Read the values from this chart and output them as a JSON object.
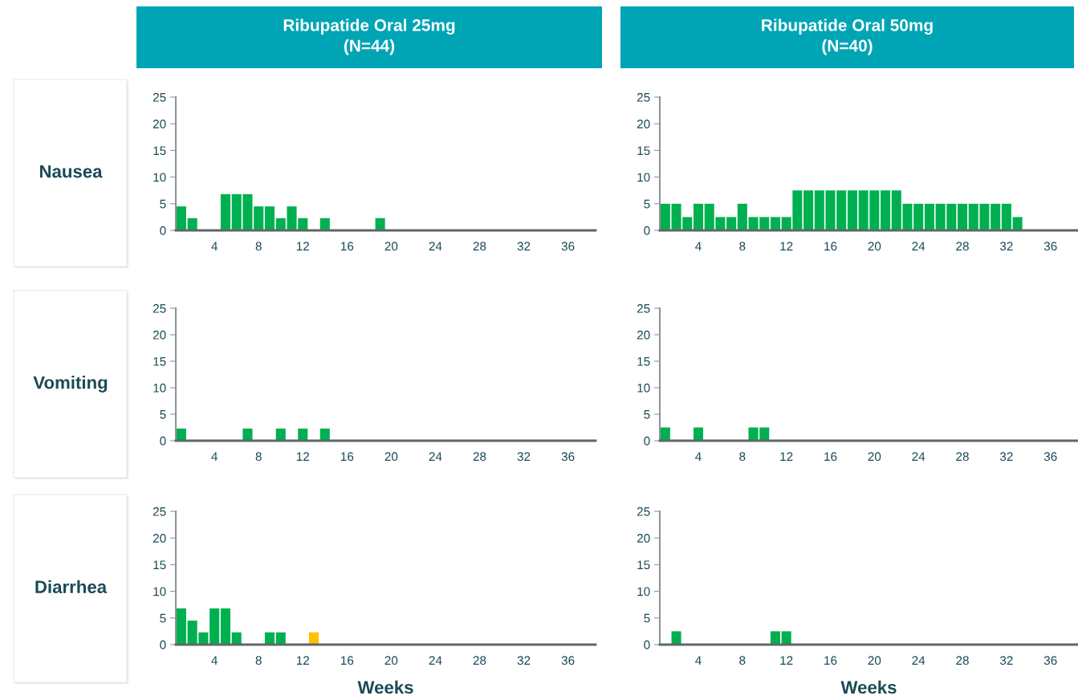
{
  "chart_data": [
    {
      "type": "bar",
      "title": "Ribupatide Oral 25mg\n(N=44)",
      "ylabel": "Nausea",
      "color": "#00b050",
      "x": [
        1,
        2,
        5,
        6,
        7,
        8,
        9,
        10,
        11,
        12,
        14,
        19
      ],
      "values": [
        4.5,
        2.3,
        6.8,
        6.8,
        6.8,
        4.5,
        4.5,
        2.3,
        4.5,
        2.3,
        2.3,
        2.3
      ],
      "xlim": [
        0.5,
        38.5
      ],
      "ylim": [
        0,
        25
      ],
      "xticks": [
        4,
        8,
        12,
        16,
        20,
        24,
        28,
        32,
        36
      ],
      "yticks": [
        0,
        5,
        10,
        15,
        20,
        25
      ]
    },
    {
      "type": "bar",
      "title": "Ribupatide Oral 50mg\n(N=40)",
      "color": "#00b050",
      "x": [
        1,
        2,
        3,
        4,
        5,
        6,
        7,
        8,
        9,
        10,
        11,
        12,
        13,
        14,
        15,
        16,
        17,
        18,
        19,
        20,
        21,
        22,
        23,
        24,
        25,
        26,
        27,
        28,
        29,
        30,
        31,
        32,
        33
      ],
      "values": [
        5,
        5,
        2.5,
        5,
        5,
        2.5,
        2.5,
        5,
        2.5,
        2.5,
        2.5,
        2.5,
        7.5,
        7.5,
        7.5,
        7.5,
        7.5,
        7.5,
        7.5,
        7.5,
        7.5,
        7.5,
        5,
        5,
        5,
        5,
        5,
        5,
        5,
        5,
        5,
        5,
        2.5
      ],
      "xlim": [
        0.5,
        38.5
      ],
      "ylim": [
        0,
        25
      ],
      "xticks": [
        4,
        8,
        12,
        16,
        20,
        24,
        28,
        32,
        36
      ],
      "yticks": [
        0,
        5,
        10,
        15,
        20,
        25
      ]
    },
    {
      "type": "bar",
      "ylabel": "Vomiting",
      "color": "#00b050",
      "x": [
        1,
        7,
        10,
        12,
        14
      ],
      "values": [
        2.3,
        2.3,
        2.3,
        2.3,
        2.3
      ],
      "xlim": [
        0.5,
        38.5
      ],
      "ylim": [
        0,
        25
      ],
      "xticks": [
        4,
        8,
        12,
        16,
        20,
        24,
        28,
        32,
        36
      ],
      "yticks": [
        0,
        5,
        10,
        15,
        20,
        25
      ]
    },
    {
      "type": "bar",
      "color": "#00b050",
      "x": [
        1,
        4,
        9,
        10
      ],
      "values": [
        2.5,
        2.5,
        2.5,
        2.5
      ],
      "xlim": [
        0.5,
        38.5
      ],
      "ylim": [
        0,
        25
      ],
      "xticks": [
        4,
        8,
        12,
        16,
        20,
        24,
        28,
        32,
        36
      ],
      "yticks": [
        0,
        5,
        10,
        15,
        20,
        25
      ]
    },
    {
      "type": "bar",
      "ylabel": "Diarrhea",
      "xlabel": "Weeks",
      "colors": [
        "#00b050",
        "#00b050",
        "#00b050",
        "#00b050",
        "#00b050",
        "#00b050",
        "#00b050",
        "#00b050",
        "#ffc000"
      ],
      "x": [
        1,
        2,
        3,
        4,
        5,
        6,
        9,
        10,
        13
      ],
      "values": [
        6.8,
        4.5,
        2.3,
        6.8,
        6.8,
        2.3,
        2.3,
        2.3,
        2.3
      ],
      "xlim": [
        0.5,
        38.5
      ],
      "ylim": [
        0,
        25
      ],
      "xticks": [
        4,
        8,
        12,
        16,
        20,
        24,
        28,
        32,
        36
      ],
      "yticks": [
        0,
        5,
        10,
        15,
        20,
        25
      ]
    },
    {
      "type": "bar",
      "xlabel": "Weeks",
      "color": "#00b050",
      "x": [
        2,
        11,
        12
      ],
      "values": [
        2.5,
        2.5,
        2.5
      ],
      "xlim": [
        0.5,
        38.5
      ],
      "ylim": [
        0,
        25
      ],
      "xticks": [
        4,
        8,
        12,
        16,
        20,
        24,
        28,
        32,
        36
      ],
      "yticks": [
        0,
        5,
        10,
        15,
        20,
        25
      ]
    }
  ]
}
